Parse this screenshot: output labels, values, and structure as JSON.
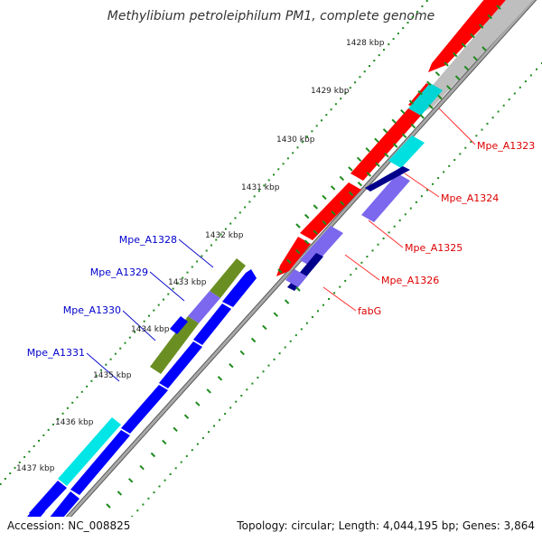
{
  "title": "Methylibium petroleiphilum PM1, complete genome",
  "footer": {
    "accession": "Accession: NC_008825",
    "topology": "Topology: circular; Length: 4,044,195 bp; Genes: 3,864"
  },
  "colors": {
    "backbone": "#8c8c8c",
    "tick_dots": "#1e8a1e",
    "forward_gene": "#ff0000",
    "reverse_gene": "#0000ff",
    "cyan_gene": "#00e5e5",
    "violet_gene": "#7b68ee",
    "dark_blue_gene": "#00008b",
    "olive_gene": "#6b8e23",
    "grey_gene": "#c0c0c0",
    "forward_label": "#dd0000",
    "reverse_label": "#0000cc"
  },
  "ticks": [
    {
      "label": "1428 kbp"
    },
    {
      "label": "1429 kbp"
    },
    {
      "label": "1430 kbp"
    },
    {
      "label": "1431 kbp"
    },
    {
      "label": "1432 kbp"
    },
    {
      "label": "1433 kbp"
    },
    {
      "label": "1434 kbp"
    },
    {
      "label": "1435 kbp"
    },
    {
      "label": "1436 kbp"
    },
    {
      "label": "1437 kbp"
    }
  ],
  "gene_labels": {
    "right": [
      {
        "name": "Mpe_A1323"
      },
      {
        "name": "Mpe_A1324"
      },
      {
        "name": "Mpe_A1325"
      },
      {
        "name": "Mpe_A1326"
      },
      {
        "name": "fabG"
      }
    ],
    "left": [
      {
        "name": "Mpe_A1328"
      },
      {
        "name": "Mpe_A1329"
      },
      {
        "name": "Mpe_A1330"
      },
      {
        "name": "Mpe_A1331"
      }
    ]
  }
}
